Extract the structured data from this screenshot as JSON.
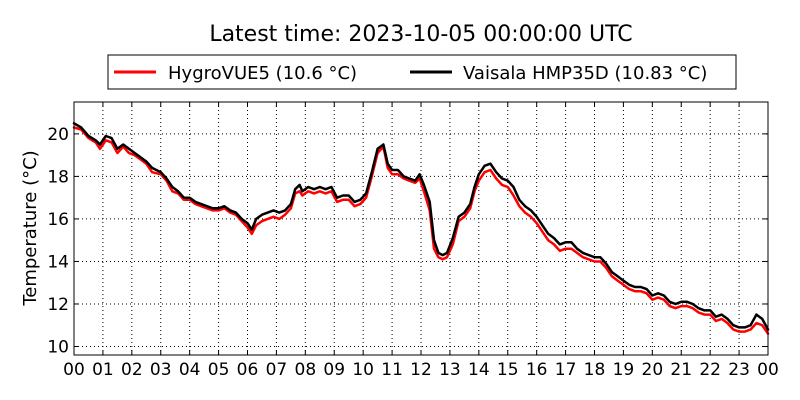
{
  "chart_data": {
    "type": "line",
    "title": "Latest time: 2023-10-05 00:00:00 UTC",
    "xlabel": "",
    "ylabel": "Temperature (°C)",
    "xlim": [
      0,
      24
    ],
    "ylim": [
      9.6,
      21.5
    ],
    "x_tick_labels": [
      "00",
      "01",
      "02",
      "03",
      "04",
      "05",
      "06",
      "07",
      "08",
      "09",
      "10",
      "11",
      "12",
      "13",
      "14",
      "15",
      "16",
      "17",
      "18",
      "19",
      "20",
      "21",
      "22",
      "23",
      "00"
    ],
    "y_ticks": [
      10,
      12,
      14,
      16,
      18,
      20
    ],
    "grid": true,
    "legend_position": "top",
    "series": [
      {
        "name": "HygroVUE5 (10.6 °C)",
        "color": "#ff0000",
        "points": [
          [
            0,
            20.3
          ],
          [
            0.25,
            20.2
          ],
          [
            0.5,
            19.8
          ],
          [
            0.75,
            19.6
          ],
          [
            0.9,
            19.3
          ],
          [
            1.1,
            19.7
          ],
          [
            1.3,
            19.6
          ],
          [
            1.5,
            19.1
          ],
          [
            1.7,
            19.4
          ],
          [
            1.9,
            19.1
          ],
          [
            2.1,
            19.0
          ],
          [
            2.3,
            18.8
          ],
          [
            2.5,
            18.6
          ],
          [
            2.7,
            18.2
          ],
          [
            3.0,
            18.1
          ],
          [
            3.2,
            17.8
          ],
          [
            3.4,
            17.3
          ],
          [
            3.6,
            17.2
          ],
          [
            3.8,
            16.9
          ],
          [
            4.0,
            16.9
          ],
          [
            4.2,
            16.7
          ],
          [
            4.4,
            16.6
          ],
          [
            4.6,
            16.5
          ],
          [
            4.8,
            16.4
          ],
          [
            5.0,
            16.4
          ],
          [
            5.2,
            16.5
          ],
          [
            5.4,
            16.3
          ],
          [
            5.6,
            16.2
          ],
          [
            5.8,
            15.9
          ],
          [
            6.0,
            15.6
          ],
          [
            6.15,
            15.3
          ],
          [
            6.3,
            15.7
          ],
          [
            6.5,
            15.9
          ],
          [
            6.7,
            16.0
          ],
          [
            6.9,
            16.1
          ],
          [
            7.1,
            16.0
          ],
          [
            7.3,
            16.2
          ],
          [
            7.5,
            16.5
          ],
          [
            7.65,
            17.2
          ],
          [
            7.8,
            17.3
          ],
          [
            7.9,
            17.1
          ],
          [
            8.1,
            17.3
          ],
          [
            8.3,
            17.2
          ],
          [
            8.5,
            17.3
          ],
          [
            8.7,
            17.2
          ],
          [
            8.9,
            17.3
          ],
          [
            9.1,
            16.8
          ],
          [
            9.3,
            16.9
          ],
          [
            9.5,
            16.9
          ],
          [
            9.7,
            16.6
          ],
          [
            9.9,
            16.7
          ],
          [
            10.1,
            17.0
          ],
          [
            10.3,
            18.0
          ],
          [
            10.5,
            19.1
          ],
          [
            10.7,
            19.4
          ],
          [
            10.85,
            18.4
          ],
          [
            11.0,
            18.1
          ],
          [
            11.2,
            18.1
          ],
          [
            11.4,
            17.9
          ],
          [
            11.6,
            17.8
          ],
          [
            11.8,
            17.7
          ],
          [
            11.95,
            17.9
          ],
          [
            12.1,
            17.3
          ],
          [
            12.3,
            16.4
          ],
          [
            12.45,
            14.6
          ],
          [
            12.6,
            14.2
          ],
          [
            12.75,
            14.1
          ],
          [
            12.9,
            14.2
          ],
          [
            13.1,
            14.8
          ],
          [
            13.3,
            15.9
          ],
          [
            13.5,
            16.1
          ],
          [
            13.7,
            16.5
          ],
          [
            13.85,
            17.3
          ],
          [
            14.0,
            17.8
          ],
          [
            14.2,
            18.2
          ],
          [
            14.4,
            18.3
          ],
          [
            14.6,
            17.9
          ],
          [
            14.8,
            17.6
          ],
          [
            15.0,
            17.5
          ],
          [
            15.2,
            17.1
          ],
          [
            15.4,
            16.6
          ],
          [
            15.6,
            16.3
          ],
          [
            15.8,
            16.1
          ],
          [
            16.0,
            15.8
          ],
          [
            16.2,
            15.4
          ],
          [
            16.4,
            15.0
          ],
          [
            16.6,
            14.8
          ],
          [
            16.8,
            14.5
          ],
          [
            17.0,
            14.6
          ],
          [
            17.2,
            14.6
          ],
          [
            17.4,
            14.4
          ],
          [
            17.6,
            14.2
          ],
          [
            17.8,
            14.1
          ],
          [
            18.0,
            14.0
          ],
          [
            18.2,
            14.0
          ],
          [
            18.4,
            13.7
          ],
          [
            18.6,
            13.3
          ],
          [
            18.8,
            13.1
          ],
          [
            19.0,
            12.9
          ],
          [
            19.2,
            12.7
          ],
          [
            19.4,
            12.6
          ],
          [
            19.6,
            12.6
          ],
          [
            19.8,
            12.5
          ],
          [
            20.0,
            12.2
          ],
          [
            20.2,
            12.3
          ],
          [
            20.4,
            12.2
          ],
          [
            20.6,
            11.9
          ],
          [
            20.8,
            11.8
          ],
          [
            21.0,
            11.9
          ],
          [
            21.2,
            11.9
          ],
          [
            21.4,
            11.8
          ],
          [
            21.6,
            11.6
          ],
          [
            21.8,
            11.5
          ],
          [
            22.0,
            11.5
          ],
          [
            22.2,
            11.2
          ],
          [
            22.4,
            11.3
          ],
          [
            22.6,
            11.1
          ],
          [
            22.8,
            10.8
          ],
          [
            23.0,
            10.7
          ],
          [
            23.2,
            10.7
          ],
          [
            23.4,
            10.8
          ],
          [
            23.6,
            11.1
          ],
          [
            23.8,
            11.0
          ],
          [
            24.0,
            10.6
          ]
        ]
      },
      {
        "name": "Vaisala HMP35D (10.83 °C)",
        "color": "#000000",
        "points": [
          [
            0,
            20.5
          ],
          [
            0.25,
            20.3
          ],
          [
            0.5,
            19.9
          ],
          [
            0.75,
            19.7
          ],
          [
            0.9,
            19.5
          ],
          [
            1.1,
            19.9
          ],
          [
            1.3,
            19.8
          ],
          [
            1.5,
            19.3
          ],
          [
            1.7,
            19.5
          ],
          [
            1.9,
            19.3
          ],
          [
            2.1,
            19.1
          ],
          [
            2.3,
            18.9
          ],
          [
            2.5,
            18.7
          ],
          [
            2.7,
            18.4
          ],
          [
            3.0,
            18.2
          ],
          [
            3.2,
            17.9
          ],
          [
            3.4,
            17.5
          ],
          [
            3.6,
            17.3
          ],
          [
            3.8,
            17.0
          ],
          [
            4.0,
            17.0
          ],
          [
            4.2,
            16.8
          ],
          [
            4.4,
            16.7
          ],
          [
            4.6,
            16.6
          ],
          [
            4.8,
            16.5
          ],
          [
            5.0,
            16.5
          ],
          [
            5.2,
            16.6
          ],
          [
            5.4,
            16.4
          ],
          [
            5.6,
            16.3
          ],
          [
            5.8,
            16.0
          ],
          [
            6.0,
            15.8
          ],
          [
            6.15,
            15.5
          ],
          [
            6.3,
            16.0
          ],
          [
            6.5,
            16.2
          ],
          [
            6.7,
            16.3
          ],
          [
            6.9,
            16.4
          ],
          [
            7.1,
            16.3
          ],
          [
            7.3,
            16.4
          ],
          [
            7.5,
            16.7
          ],
          [
            7.65,
            17.4
          ],
          [
            7.8,
            17.6
          ],
          [
            7.9,
            17.3
          ],
          [
            8.1,
            17.5
          ],
          [
            8.3,
            17.4
          ],
          [
            8.5,
            17.5
          ],
          [
            8.7,
            17.4
          ],
          [
            8.9,
            17.5
          ],
          [
            9.1,
            17.0
          ],
          [
            9.3,
            17.1
          ],
          [
            9.5,
            17.1
          ],
          [
            9.7,
            16.8
          ],
          [
            9.9,
            16.9
          ],
          [
            10.1,
            17.2
          ],
          [
            10.3,
            18.2
          ],
          [
            10.5,
            19.3
          ],
          [
            10.7,
            19.5
          ],
          [
            10.85,
            18.6
          ],
          [
            11.0,
            18.3
          ],
          [
            11.2,
            18.3
          ],
          [
            11.4,
            18.0
          ],
          [
            11.6,
            17.9
          ],
          [
            11.8,
            17.8
          ],
          [
            11.95,
            18.1
          ],
          [
            12.1,
            17.6
          ],
          [
            12.3,
            16.8
          ],
          [
            12.45,
            15.0
          ],
          [
            12.6,
            14.4
          ],
          [
            12.75,
            14.3
          ],
          [
            12.9,
            14.4
          ],
          [
            13.1,
            15.1
          ],
          [
            13.3,
            16.1
          ],
          [
            13.5,
            16.3
          ],
          [
            13.7,
            16.7
          ],
          [
            13.85,
            17.5
          ],
          [
            14.0,
            18.1
          ],
          [
            14.2,
            18.5
          ],
          [
            14.4,
            18.6
          ],
          [
            14.6,
            18.2
          ],
          [
            14.8,
            17.9
          ],
          [
            15.0,
            17.8
          ],
          [
            15.2,
            17.5
          ],
          [
            15.4,
            16.9
          ],
          [
            15.6,
            16.6
          ],
          [
            15.8,
            16.4
          ],
          [
            16.0,
            16.1
          ],
          [
            16.2,
            15.7
          ],
          [
            16.4,
            15.3
          ],
          [
            16.6,
            15.1
          ],
          [
            16.8,
            14.8
          ],
          [
            17.0,
            14.9
          ],
          [
            17.2,
            14.9
          ],
          [
            17.4,
            14.6
          ],
          [
            17.6,
            14.4
          ],
          [
            17.8,
            14.3
          ],
          [
            18.0,
            14.2
          ],
          [
            18.2,
            14.2
          ],
          [
            18.4,
            13.9
          ],
          [
            18.6,
            13.5
          ],
          [
            18.8,
            13.3
          ],
          [
            19.0,
            13.1
          ],
          [
            19.2,
            12.9
          ],
          [
            19.4,
            12.8
          ],
          [
            19.6,
            12.8
          ],
          [
            19.8,
            12.7
          ],
          [
            20.0,
            12.4
          ],
          [
            20.2,
            12.5
          ],
          [
            20.4,
            12.4
          ],
          [
            20.6,
            12.1
          ],
          [
            20.8,
            12.0
          ],
          [
            21.0,
            12.1
          ],
          [
            21.2,
            12.1
          ],
          [
            21.4,
            12.0
          ],
          [
            21.6,
            11.8
          ],
          [
            21.8,
            11.7
          ],
          [
            22.0,
            11.7
          ],
          [
            22.2,
            11.4
          ],
          [
            22.4,
            11.5
          ],
          [
            22.6,
            11.3
          ],
          [
            22.8,
            11.0
          ],
          [
            23.0,
            10.9
          ],
          [
            23.2,
            10.9
          ],
          [
            23.4,
            11.0
          ],
          [
            23.6,
            11.5
          ],
          [
            23.8,
            11.3
          ],
          [
            24.0,
            10.8
          ]
        ]
      }
    ]
  }
}
